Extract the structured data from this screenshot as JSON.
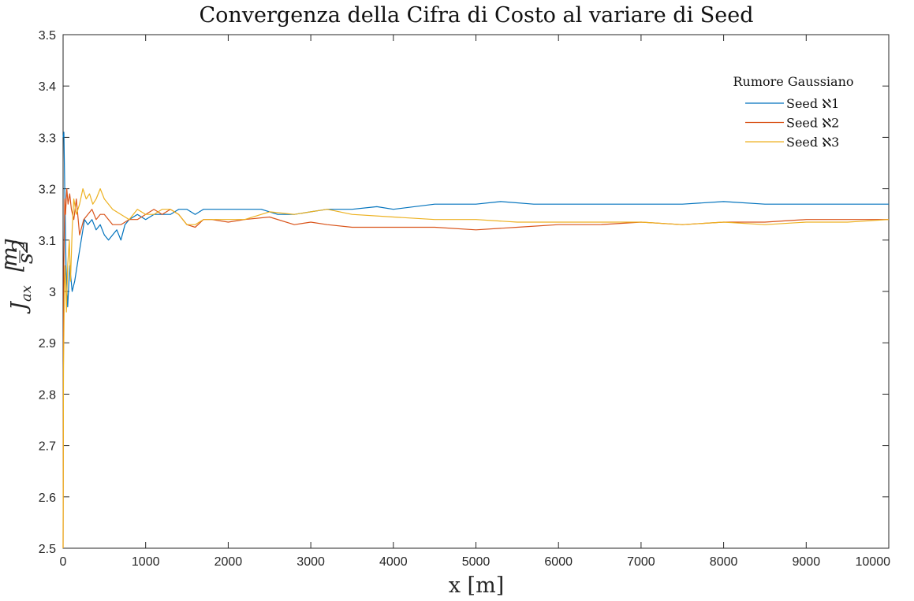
{
  "chart_data": {
    "type": "line",
    "title": "Convergenza della Cifra di Costo al variare di Seed",
    "xlabel": "x [m]",
    "ylabel": {
      "symbol": "J",
      "subscript": "ax",
      "unit_num": "m",
      "unit_den": "s",
      "unit_exp": "2"
    },
    "xlim": [
      0,
      10000
    ],
    "ylim": [
      2.5,
      3.5
    ],
    "xticks": [
      "0",
      "1000",
      "2000",
      "3000",
      "4000",
      "5000",
      "6000",
      "7000",
      "8000",
      "9000",
      "10000"
    ],
    "yticks": [
      "2.5",
      "2.6",
      "2.7",
      "2.8",
      "2.9",
      "3",
      "3.1",
      "3.2",
      "3.3",
      "3.4",
      "3.5"
    ],
    "grid": false,
    "legend": {
      "title": "Rumore Gaussiano",
      "placement": "top-right"
    },
    "series": [
      {
        "name": "Seed ℵ1",
        "color": "#0072BD",
        "x": [
          0,
          10,
          20,
          35,
          55,
          80,
          110,
          140,
          180,
          220,
          260,
          300,
          350,
          400,
          450,
          500,
          550,
          600,
          650,
          700,
          750,
          800,
          900,
          1000,
          1100,
          1200,
          1300,
          1400,
          1500,
          1600,
          1700,
          1800,
          2000,
          2200,
          2400,
          2600,
          2800,
          3000,
          3200,
          3500,
          3800,
          4000,
          4500,
          5000,
          5300,
          5700,
          6000,
          6500,
          7000,
          7500,
          8000,
          8500,
          9000,
          9500,
          10000
        ],
        "y": [
          3.3,
          3.31,
          3.2,
          3.05,
          2.97,
          3.05,
          3.0,
          3.02,
          3.06,
          3.1,
          3.14,
          3.13,
          3.14,
          3.12,
          3.13,
          3.11,
          3.1,
          3.11,
          3.12,
          3.1,
          3.13,
          3.14,
          3.15,
          3.14,
          3.15,
          3.15,
          3.15,
          3.16,
          3.16,
          3.15,
          3.16,
          3.16,
          3.16,
          3.16,
          3.16,
          3.15,
          3.15,
          3.155,
          3.16,
          3.16,
          3.165,
          3.16,
          3.17,
          3.17,
          3.175,
          3.17,
          3.17,
          3.17,
          3.17,
          3.17,
          3.175,
          3.17,
          3.17,
          3.17,
          3.17
        ]
      },
      {
        "name": "Seed ℵ2",
        "color": "#D95319",
        "x": [
          0,
          5,
          10,
          20,
          30,
          45,
          60,
          80,
          100,
          130,
          160,
          200,
          250,
          300,
          350,
          400,
          450,
          500,
          600,
          700,
          800,
          900,
          1000,
          1100,
          1200,
          1300,
          1400,
          1500,
          1600,
          1700,
          1800,
          2000,
          2200,
          2500,
          2800,
          3000,
          3200,
          3500,
          3800,
          4000,
          4500,
          5000,
          5500,
          6000,
          6500,
          7000,
          7500,
          8000,
          8500,
          9000,
          9500,
          10000
        ],
        "y": [
          2.5,
          2.9,
          3.05,
          3.18,
          3.15,
          3.2,
          3.17,
          3.19,
          3.16,
          3.14,
          3.18,
          3.11,
          3.14,
          3.15,
          3.16,
          3.14,
          3.15,
          3.15,
          3.13,
          3.13,
          3.14,
          3.14,
          3.15,
          3.16,
          3.15,
          3.16,
          3.15,
          3.13,
          3.125,
          3.14,
          3.14,
          3.135,
          3.14,
          3.145,
          3.13,
          3.135,
          3.13,
          3.125,
          3.125,
          3.125,
          3.125,
          3.12,
          3.125,
          3.13,
          3.13,
          3.135,
          3.13,
          3.135,
          3.135,
          3.14,
          3.14,
          3.14
        ]
      },
      {
        "name": "Seed ℵ3",
        "color": "#EDB120",
        "x": [
          0,
          5,
          15,
          25,
          40,
          55,
          75,
          90,
          110,
          130,
          160,
          200,
          240,
          280,
          320,
          360,
          400,
          450,
          500,
          550,
          600,
          700,
          800,
          900,
          1000,
          1100,
          1200,
          1300,
          1400,
          1500,
          1600,
          1700,
          1800,
          2000,
          2200,
          2500,
          2800,
          3000,
          3200,
          3500,
          4000,
          4500,
          5000,
          5500,
          6000,
          6500,
          7000,
          7500,
          8000,
          8500,
          9000,
          9500,
          10000
        ],
        "y": [
          2.5,
          2.85,
          3.0,
          3.05,
          2.96,
          3.05,
          3.1,
          3.02,
          3.12,
          3.18,
          3.15,
          3.17,
          3.2,
          3.18,
          3.19,
          3.17,
          3.18,
          3.2,
          3.18,
          3.17,
          3.16,
          3.15,
          3.14,
          3.16,
          3.15,
          3.15,
          3.16,
          3.16,
          3.15,
          3.13,
          3.13,
          3.14,
          3.14,
          3.14,
          3.14,
          3.155,
          3.15,
          3.155,
          3.16,
          3.15,
          3.145,
          3.14,
          3.14,
          3.135,
          3.135,
          3.135,
          3.135,
          3.13,
          3.135,
          3.13,
          3.135,
          3.135,
          3.14
        ]
      }
    ]
  }
}
